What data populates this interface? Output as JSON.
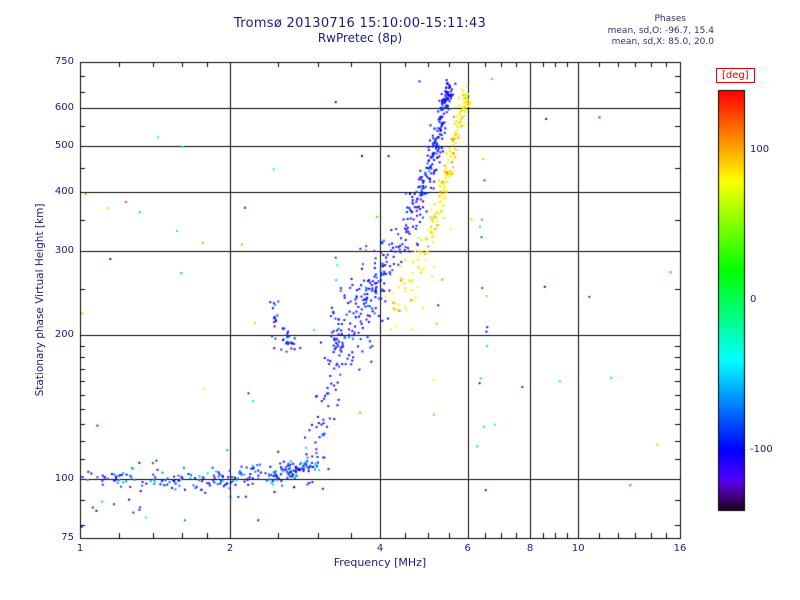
{
  "header": {
    "title": "Tromsø 20130716 15:10:00-15:11:43",
    "subtitle": "RwPretec (8p)",
    "phases_label": "Phases",
    "phases_o": "mean, sd,O: -96.7, 15.4",
    "phases_x": "mean, sd,X:  85.0, 20.0"
  },
  "axes": {
    "x": {
      "label": "Frequency [MHz]",
      "scale": "log",
      "min": 1,
      "max": 16,
      "ticks": [
        1,
        2,
        4,
        6,
        8,
        10,
        16
      ],
      "minor_ticks": [
        1.2,
        1.4,
        1.6,
        1.8,
        2.5,
        3,
        3.5,
        4.5,
        5,
        5.5,
        6.5,
        7,
        7.5,
        8.5,
        9,
        9.5,
        11,
        12,
        13,
        14,
        15
      ]
    },
    "y": {
      "label": "Stationary phase Virtual Height [km]",
      "scale": "log",
      "min": 75,
      "max": 750,
      "ticks": [
        75,
        100,
        200,
        300,
        400,
        500,
        600,
        750
      ],
      "minor_ticks": [
        80,
        90,
        110,
        120,
        130,
        140,
        150,
        160,
        170,
        180,
        190,
        250,
        350,
        450,
        550,
        650,
        700
      ]
    }
  },
  "chart_data": {
    "type": "scatter",
    "title": "Tromsø 20130716 15:10:00-15:11:43",
    "subtitle": "RwPretec (8p)",
    "xlabel": "Frequency [MHz]",
    "ylabel": "Stationary phase Virtual Height [km]",
    "xlim": [
      1,
      16
    ],
    "ylim": [
      75,
      750
    ],
    "xscale": "log",
    "yscale": "log",
    "grid": true,
    "color_scale": {
      "label": "[deg]",
      "min": -140,
      "max": 140,
      "ticks": [
        100,
        0,
        -100
      ],
      "units": "deg"
    },
    "stats": {
      "o_mode": {
        "phase_mean": -96.7,
        "phase_sd": 15.4
      },
      "x_mode": {
        "phase_mean": 85.0,
        "phase_sd": 20.0
      }
    },
    "series": [
      {
        "name": "background-noise",
        "type": "uniform",
        "n": 52,
        "f_range": [
          1.0,
          15.5
        ],
        "h_range": [
          80,
          700
        ],
        "phase_range": [
          -140,
          140
        ]
      },
      {
        "name": "interference-column",
        "type": "uniform",
        "n": 13,
        "f_range": [
          6.3,
          6.6
        ],
        "h_range": [
          85,
          620
        ],
        "phase_range": [
          -140,
          140
        ]
      },
      {
        "name": "X-mode echo trace",
        "type": "trace",
        "phase_mean": 85.0,
        "phase_sd": 13,
        "segments": [
          {
            "path": [
              [
                4.25,
                226
              ],
              [
                4.45,
                240
              ],
              [
                4.65,
                258
              ]
            ],
            "n": 32,
            "f_jitter": 0.012,
            "h_jitter": 0.035
          },
          {
            "path": [
              [
                4.72,
                268
              ],
              [
                4.9,
                290
              ],
              [
                5.05,
                315
              ]
            ],
            "n": 30,
            "f_jitter": 0.01,
            "h_jitter": 0.03
          },
          {
            "path": [
              [
                5.05,
                320
              ],
              [
                5.25,
                368
              ],
              [
                5.45,
                435
              ],
              [
                5.6,
                495
              ],
              [
                5.75,
                555
              ],
              [
                5.88,
                605
              ],
              [
                5.97,
                638
              ]
            ],
            "n": 175,
            "f_jitter": 0.0045,
            "h_jitter": 0.012
          }
        ]
      },
      {
        "name": "O-mode echo trace",
        "type": "trace",
        "phase_mean": -96.7,
        "phase_sd": 12,
        "segments": [
          {
            "path": [
              [
                1.02,
                100
              ],
              [
                1.5,
                99
              ],
              [
                2.0,
                100
              ],
              [
                2.45,
                102
              ],
              [
                2.75,
                104
              ],
              [
                2.95,
                110
              ]
            ],
            "n": 270,
            "f_jitter": 0.01,
            "h_jitter": 0.012,
            "wild": 0.1,
            "phase_mean": -90,
            "phase_sd": 22
          },
          {
            "path": [
              [
                1.05,
                88
              ],
              [
                1.35,
                91
              ]
            ],
            "n": 8,
            "f_jitter": 0.02,
            "h_jitter": 0.02
          },
          {
            "path": [
              [
                2.95,
                112
              ],
              [
                3.05,
                128
              ],
              [
                3.15,
                150
              ],
              [
                3.25,
                178
              ],
              [
                3.3,
                200
              ]
            ],
            "n": 70,
            "f_jitter": 0.01,
            "h_jitter": 0.035,
            "wild": 0.1
          },
          {
            "path": [
              [
                3.28,
                205
              ],
              [
                3.45,
                212
              ],
              [
                3.6,
                222
              ],
              [
                3.78,
                238
              ],
              [
                3.95,
                252
              ],
              [
                4.1,
                266
              ]
            ],
            "n": 160,
            "f_jitter": 0.01,
            "h_jitter": 0.045
          },
          {
            "path": [
              [
                4.1,
                270
              ],
              [
                4.3,
                298
              ],
              [
                4.5,
                330
              ],
              [
                4.68,
                362
              ],
              [
                4.82,
                388
              ]
            ],
            "n": 85,
            "f_jitter": 0.008,
            "h_jitter": 0.028
          },
          {
            "path": [
              [
                4.82,
                390
              ],
              [
                5.0,
                438
              ],
              [
                5.12,
                478
              ],
              [
                5.22,
                520
              ],
              [
                5.32,
                565
              ]
            ],
            "n": 120,
            "f_jitter": 0.006,
            "h_jitter": 0.018
          },
          {
            "path": [
              [
                5.3,
                565
              ],
              [
                5.38,
                612
              ],
              [
                5.45,
                642
              ],
              [
                5.5,
                658
              ]
            ],
            "n": 70,
            "f_jitter": 0.005,
            "h_jitter": 0.012
          },
          {
            "path": [
              [
                2.44,
                232
              ],
              [
                2.46,
                215
              ],
              [
                2.5,
                202
              ],
              [
                2.56,
                195
              ],
              [
                2.64,
                192
              ],
              [
                2.7,
                196
              ]
            ],
            "n": 40,
            "f_jitter": 0.005,
            "h_jitter": 0.015
          }
        ]
      }
    ]
  }
}
